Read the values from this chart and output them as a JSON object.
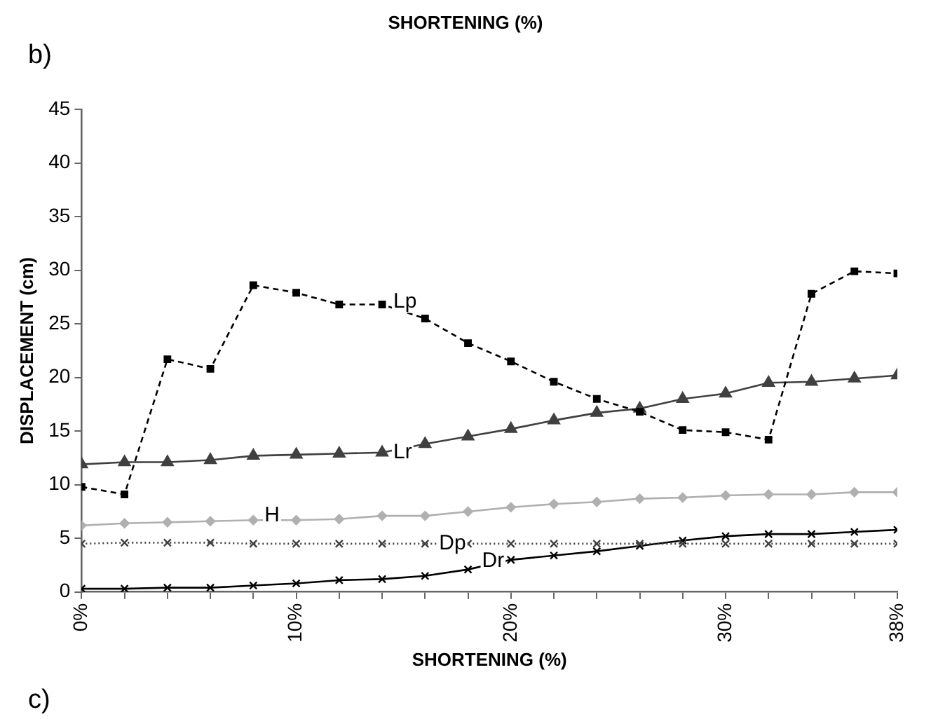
{
  "chart_data": {
    "type": "line",
    "xlabel": "SHORTENING (%)",
    "ylabel": "DISPLACEMENT (cm)",
    "annotations": [
      "b)",
      "SHORTENING (%)",
      "c)"
    ],
    "x": [
      0,
      2,
      4,
      6,
      8,
      10,
      12,
      14,
      16,
      18,
      20,
      22,
      24,
      26,
      28,
      30,
      32,
      34,
      36,
      38
    ],
    "xlim": [
      0,
      38
    ],
    "xticks": [
      {
        "value": 0,
        "label": "0%"
      },
      {
        "value": 2,
        "label": null
      },
      {
        "value": 4,
        "label": null
      },
      {
        "value": 6,
        "label": null
      },
      {
        "value": 8,
        "label": null
      },
      {
        "value": 10,
        "label": "10%"
      },
      {
        "value": 12,
        "label": null
      },
      {
        "value": 14,
        "label": null
      },
      {
        "value": 16,
        "label": null
      },
      {
        "value": 18,
        "label": null
      },
      {
        "value": 20,
        "label": "20%"
      },
      {
        "value": 22,
        "label": null
      },
      {
        "value": 24,
        "label": null
      },
      {
        "value": 26,
        "label": null
      },
      {
        "value": 28,
        "label": null
      },
      {
        "value": 30,
        "label": "30%"
      },
      {
        "value": 32,
        "label": null
      },
      {
        "value": 34,
        "label": null
      },
      {
        "value": 36,
        "label": null
      },
      {
        "value": 38,
        "label": "38%"
      }
    ],
    "ylim": [
      0,
      45
    ],
    "yticks": [
      0,
      5,
      10,
      15,
      20,
      25,
      30,
      35,
      40,
      45
    ],
    "grid": false,
    "legend": false,
    "series": [
      {
        "name": "Lp",
        "color": "#000000",
        "marker": "square",
        "line_style": "dashed",
        "values": [
          9.8,
          9.1,
          21.7,
          20.8,
          28.6,
          27.9,
          26.8,
          26.8,
          25.5,
          23.2,
          21.5,
          19.6,
          18.0,
          16.8,
          15.1,
          14.9,
          14.2,
          27.8,
          29.9,
          29.7
        ]
      },
      {
        "name": "Lr",
        "color": "#404040",
        "marker": "triangle",
        "line_style": "solid",
        "values": [
          11.9,
          12.1,
          12.1,
          12.3,
          12.7,
          12.8,
          12.9,
          13.0,
          13.8,
          14.5,
          15.2,
          16.0,
          16.7,
          17.1,
          18.0,
          18.5,
          19.5,
          19.6,
          19.9,
          20.2
        ]
      },
      {
        "name": "H",
        "color": "#b0b0b0",
        "marker": "diamond",
        "line_style": "solid",
        "values": [
          6.2,
          6.4,
          6.5,
          6.6,
          6.7,
          6.7,
          6.8,
          7.1,
          7.1,
          7.5,
          7.9,
          8.2,
          8.4,
          8.7,
          8.8,
          9.0,
          9.1,
          9.1,
          9.3,
          9.3
        ]
      },
      {
        "name": "Dp",
        "color": "#404040",
        "marker": "cross",
        "line_style": "dotted",
        "values": [
          4.5,
          4.6,
          4.6,
          4.6,
          4.5,
          4.5,
          4.5,
          4.5,
          4.5,
          4.5,
          4.5,
          4.5,
          4.5,
          4.5,
          4.5,
          4.5,
          4.5,
          4.5,
          4.5,
          4.5
        ]
      },
      {
        "name": "Dr",
        "color": "#000000",
        "marker": "cross",
        "line_style": "solid",
        "values": [
          0.3,
          0.3,
          0.4,
          0.4,
          0.6,
          0.8,
          1.1,
          1.2,
          1.5,
          2.1,
          3.0,
          3.4,
          3.8,
          4.3,
          4.8,
          5.2,
          5.4,
          5.4,
          5.6,
          5.8
        ]
      }
    ]
  }
}
